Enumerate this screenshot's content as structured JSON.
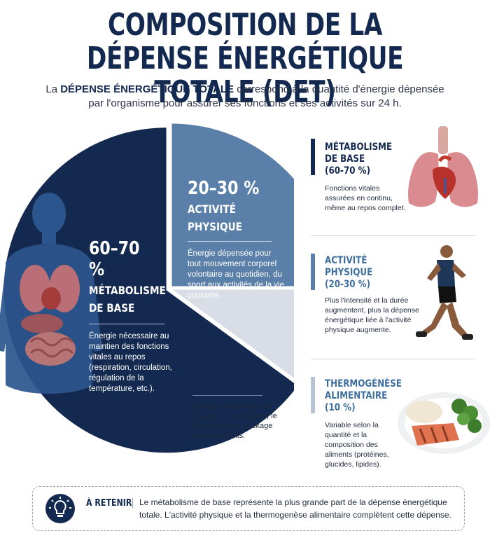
{
  "header": {
    "title_line1": "COMPOSITION DE LA",
    "title_line2": "DÉPENSE ÉNERGÉTIQUE TOTALE (DET)",
    "intro_prefix": "La ",
    "intro_bold": "DÉPENSE ÉNERGÉTIQUE TOTALE",
    "intro_rest": " correspond à la quantité d'énergie dépensée par l'organisme pour assurer ses fonctions et ses activités sur 24 h."
  },
  "colors": {
    "base": "#14294f",
    "activity": "#5a7fa8",
    "thermo": "#d9dee6",
    "accent_text": "#3f6f9e"
  },
  "chart_data": {
    "type": "pie",
    "slices": [
      {
        "percent": "60–70 %",
        "label": "MÉTABOLISME DE BASE",
        "label_line1": "MÉTABOLISME",
        "label_line2": "DE BASE",
        "value": 65,
        "description": "Énergie nécessaire au maintien des fonctions vitales au repos (respiration, circulation, régulation de la température, etc.)."
      },
      {
        "percent": "20–30 %",
        "label": "ACTIVITÉ PHYSIQUE",
        "label_line1": "ACTIVITÉ",
        "label_line2": "PHYSIQUE",
        "value": 25,
        "description": "Énergie dépensée pour tout mouvement corporel volontaire au quotidien, du sport aux activités de la vie courante."
      },
      {
        "percent": "10 %",
        "label": "THERMOGÉNÈSE ALIMENTAIRE",
        "label_line1": "THERMOGÉNÈSE",
        "label_line2": "ALIMENTAIRE",
        "value": 10,
        "description": "Énergie utilisée pour la digestion, l'absorption, le transport et le stockage des nutriments."
      }
    ]
  },
  "side_panels": [
    {
      "title_line1": "MÉTABOLISME",
      "title_line2": "DE BASE",
      "title_line3": "(60-70 %)",
      "description": "Fonctions vitales assurées en continu, même au repos complet.",
      "icon": "lungs-heart-icon"
    },
    {
      "title_line1": "ACTIVITÉ",
      "title_line2": "PHYSIQUE",
      "title_line3": "(20-30 %)",
      "description": "Plus l'intensité et la durée augmentent, plus la dépense énergétique liée à l'activité physique augmente.",
      "icon": "runner-icon"
    },
    {
      "title_line1": "THERMOGÉNÈSE",
      "title_line2": "ALIMENTAIRE",
      "title_line3": "(10 %)",
      "description": "Variable selon la quantité et la composition des aliments (protéines, glucides, lipides).",
      "icon": "meal-plate-icon"
    }
  ],
  "footer": {
    "label": "À RETENIR",
    "separator": "|",
    "text": "Le métabolisme de base représente la plus grande part de la dépense énergétique totale. L'activité physique et la thermogenèse alimentaire complètent cette dépense.",
    "icon": "lightbulb-icon"
  }
}
